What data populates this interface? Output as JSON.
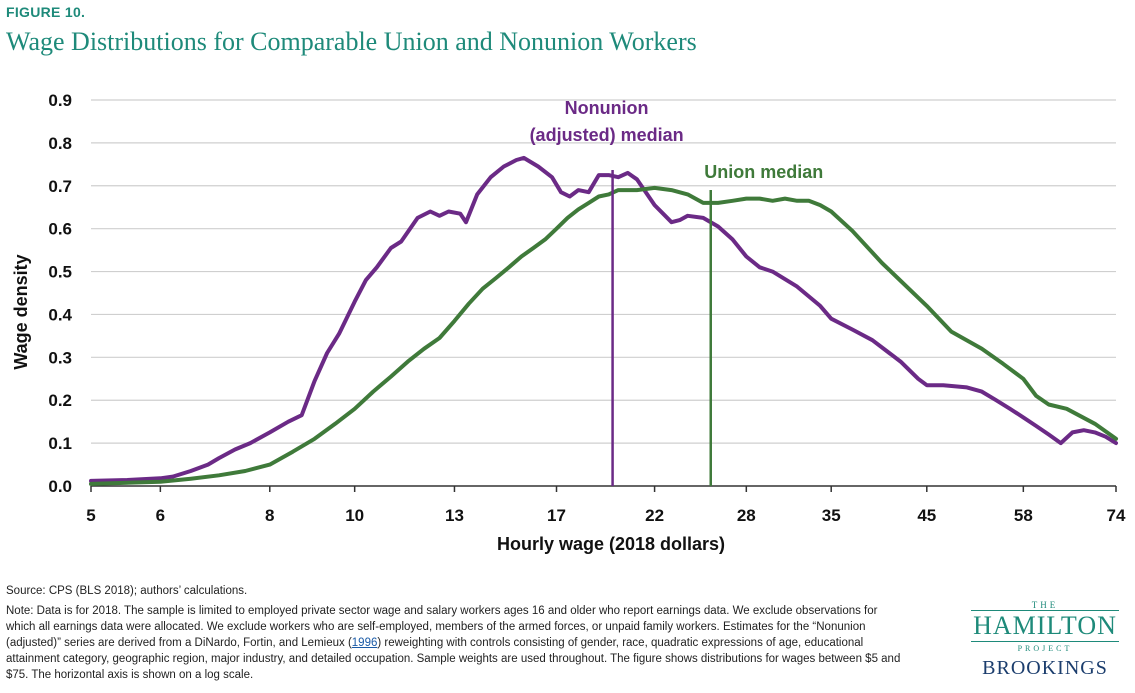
{
  "figure_label": "FIGURE 10.",
  "chart_data": {
    "type": "line",
    "title": "Wage Distributions for Comparable Union and Nonunion Workers",
    "xlabel": "Hourly wage (2018 dollars)",
    "ylabel": "Wage density",
    "x_scale": "log",
    "xlim": [
      5,
      74
    ],
    "ylim": [
      0,
      0.9
    ],
    "x_ticks": [
      5,
      6,
      8,
      10,
      13,
      17,
      22,
      28,
      35,
      45,
      58,
      74
    ],
    "x_tick_labels": [
      "5",
      "6",
      "8",
      "10",
      "13",
      "17",
      "22",
      "28",
      "35",
      "45",
      "58",
      "74"
    ],
    "y_ticks": [
      0,
      0.1,
      0.2,
      0.3,
      0.4,
      0.5,
      0.6,
      0.7,
      0.8,
      0.9
    ],
    "y_tick_labels": [
      "0.0",
      "0.1",
      "0.2",
      "0.3",
      "0.4",
      "0.5",
      "0.6",
      "0.7",
      "0.8",
      "0.9"
    ],
    "grid": true,
    "series": [
      {
        "name": "Nonunion (adjusted)",
        "color": "#6b2a86",
        "points": [
          [
            5,
            0.012
          ],
          [
            5.5,
            0.014
          ],
          [
            6,
            0.018
          ],
          [
            6.2,
            0.022
          ],
          [
            6.5,
            0.035
          ],
          [
            6.8,
            0.05
          ],
          [
            7,
            0.065
          ],
          [
            7.3,
            0.085
          ],
          [
            7.6,
            0.1
          ],
          [
            8,
            0.125
          ],
          [
            8.4,
            0.15
          ],
          [
            8.7,
            0.165
          ],
          [
            9,
            0.245
          ],
          [
            9.3,
            0.31
          ],
          [
            9.6,
            0.355
          ],
          [
            10,
            0.43
          ],
          [
            10.3,
            0.48
          ],
          [
            10.6,
            0.51
          ],
          [
            11,
            0.555
          ],
          [
            11.3,
            0.57
          ],
          [
            11.8,
            0.625
          ],
          [
            12.2,
            0.64
          ],
          [
            12.5,
            0.63
          ],
          [
            12.8,
            0.64
          ],
          [
            13.2,
            0.635
          ],
          [
            13.4,
            0.615
          ],
          [
            13.8,
            0.68
          ],
          [
            14.3,
            0.72
          ],
          [
            14.8,
            0.745
          ],
          [
            15.3,
            0.76
          ],
          [
            15.6,
            0.765
          ],
          [
            16.2,
            0.745
          ],
          [
            16.8,
            0.72
          ],
          [
            17.2,
            0.685
          ],
          [
            17.6,
            0.675
          ],
          [
            18,
            0.69
          ],
          [
            18.5,
            0.685
          ],
          [
            19,
            0.725
          ],
          [
            19.5,
            0.725
          ],
          [
            20,
            0.72
          ],
          [
            20.5,
            0.73
          ],
          [
            21,
            0.715
          ],
          [
            21.5,
            0.685
          ],
          [
            22,
            0.655
          ],
          [
            22.5,
            0.635
          ],
          [
            23,
            0.615
          ],
          [
            23.5,
            0.62
          ],
          [
            24,
            0.63
          ],
          [
            25,
            0.625
          ],
          [
            26,
            0.605
          ],
          [
            27,
            0.575
          ],
          [
            28,
            0.535
          ],
          [
            29,
            0.51
          ],
          [
            30,
            0.5
          ],
          [
            32,
            0.465
          ],
          [
            34,
            0.42
          ],
          [
            35,
            0.39
          ],
          [
            37,
            0.365
          ],
          [
            39,
            0.34
          ],
          [
            42,
            0.29
          ],
          [
            44,
            0.25
          ],
          [
            45,
            0.235
          ],
          [
            47,
            0.235
          ],
          [
            50,
            0.23
          ],
          [
            52,
            0.22
          ],
          [
            54,
            0.2
          ],
          [
            56,
            0.18
          ],
          [
            58,
            0.16
          ],
          [
            60,
            0.14
          ],
          [
            62,
            0.12
          ],
          [
            64,
            0.1
          ],
          [
            66,
            0.125
          ],
          [
            68,
            0.13
          ],
          [
            70,
            0.125
          ],
          [
            72,
            0.115
          ],
          [
            74,
            0.1
          ]
        ]
      },
      {
        "name": "Union",
        "color": "#3f7a3a",
        "points": [
          [
            5,
            0.005
          ],
          [
            6,
            0.01
          ],
          [
            6.5,
            0.017
          ],
          [
            7,
            0.025
          ],
          [
            7.5,
            0.035
          ],
          [
            8,
            0.05
          ],
          [
            8.5,
            0.08
          ],
          [
            9,
            0.11
          ],
          [
            9.5,
            0.145
          ],
          [
            10,
            0.18
          ],
          [
            10.5,
            0.22
          ],
          [
            11,
            0.255
          ],
          [
            11.5,
            0.29
          ],
          [
            12,
            0.32
          ],
          [
            12.5,
            0.345
          ],
          [
            13,
            0.385
          ],
          [
            13.5,
            0.425
          ],
          [
            14,
            0.46
          ],
          [
            14.5,
            0.485
          ],
          [
            15,
            0.51
          ],
          [
            15.5,
            0.535
          ],
          [
            16,
            0.555
          ],
          [
            16.5,
            0.575
          ],
          [
            17,
            0.6
          ],
          [
            17.5,
            0.625
          ],
          [
            18,
            0.645
          ],
          [
            18.5,
            0.66
          ],
          [
            19,
            0.675
          ],
          [
            19.5,
            0.68
          ],
          [
            20,
            0.69
          ],
          [
            21,
            0.69
          ],
          [
            22,
            0.695
          ],
          [
            23,
            0.69
          ],
          [
            24,
            0.68
          ],
          [
            25,
            0.66
          ],
          [
            26,
            0.66
          ],
          [
            27,
            0.665
          ],
          [
            28,
            0.67
          ],
          [
            29,
            0.67
          ],
          [
            30,
            0.665
          ],
          [
            31,
            0.67
          ],
          [
            32,
            0.665
          ],
          [
            33,
            0.665
          ],
          [
            34,
            0.655
          ],
          [
            35,
            0.64
          ],
          [
            37,
            0.595
          ],
          [
            40,
            0.52
          ],
          [
            45,
            0.42
          ],
          [
            48,
            0.36
          ],
          [
            52,
            0.32
          ],
          [
            55,
            0.285
          ],
          [
            58,
            0.25
          ],
          [
            60,
            0.21
          ],
          [
            62,
            0.19
          ],
          [
            65,
            0.18
          ],
          [
            70,
            0.145
          ],
          [
            74,
            0.11
          ]
        ]
      }
    ],
    "medians": [
      {
        "name": "Nonunion median",
        "x": 19.7,
        "label_lines": [
          "Nonunion",
          "(adjusted)  median"
        ],
        "color": "#6b2a86"
      },
      {
        "name": "Union median",
        "x": 25.5,
        "label_lines": [
          "Union median"
        ],
        "color": "#3f7a3a"
      }
    ]
  },
  "source": "Source: CPS (BLS 2018); authors’ calculations.",
  "note": {
    "before": "Note: Data is for 2018. The sample is limited to employed private sector wage and salary workers ages 16 and older who report earnings data. We exclude observations for which all earnings data were allocated. We exclude workers who are self-employed, members of the armed forces, or unpaid family workers. Estimates for the “Nonunion (adjusted)” series are derived from a DiNardo, Fortin, and Lemieux (",
    "cite": "1996",
    "after": ") reweighting with controls consisting of gender, race, quadratic expressions of age, educational attainment category, geographic region, major industry, and detailed occupation. Sample weights are used throughout. The figure shows distributions for wages between $5 and $75. The horizontal axis is shown on a log scale."
  },
  "logo": {
    "the": "THE",
    "hamilton": "HAMILTON",
    "project": "PROJECT",
    "brookings": "BROOKINGS"
  }
}
